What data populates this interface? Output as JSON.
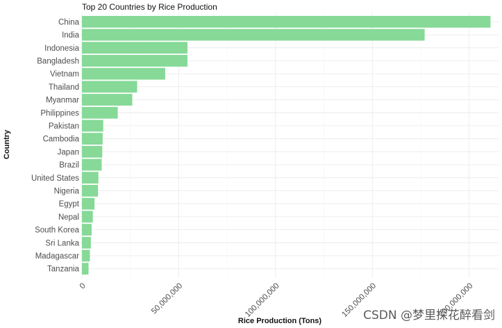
{
  "chart_data": {
    "type": "bar",
    "orientation": "horizontal",
    "title": "Top 20 Countries by Rice Production",
    "xlabel": "Rice Production (Tons)",
    "ylabel": "Country",
    "categories": [
      "China",
      "India",
      "Indonesia",
      "Bangladesh",
      "Vietnam",
      "Thailand",
      "Myanmar",
      "Philippines",
      "Pakistan",
      "Cambodia",
      "Japan",
      "Brazil",
      "United States",
      "Nigeria",
      "Egypt",
      "Nepal",
      "South Korea",
      "Sri Lanka",
      "Madagascar",
      "Tanzania"
    ],
    "values": [
      211000000,
      177000000,
      54500000,
      54500000,
      43000000,
      28500000,
      26000000,
      18500000,
      11000000,
      10700000,
      10500000,
      10200000,
      8500000,
      8300000,
      6500000,
      5600000,
      5000000,
      4600000,
      4100000,
      3400000
    ],
    "xlim": [
      0,
      213000000
    ],
    "xticks": [
      0,
      50000000,
      100000000,
      150000000,
      200000000
    ],
    "xtick_labels": [
      "0",
      "50,000,000",
      "100,000,000",
      "150,000,000",
      "200,000,000"
    ],
    "bar_color": "#86d997",
    "grid": true
  },
  "watermark": "CSDN @梦里探花醉看剑"
}
